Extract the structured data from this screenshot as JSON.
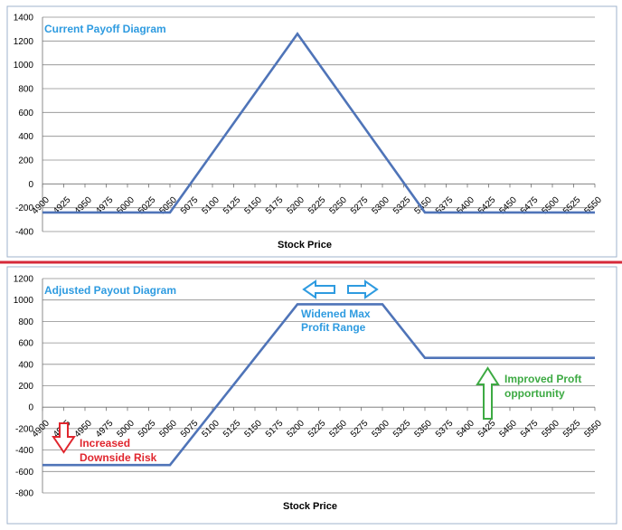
{
  "colors": {
    "line": "#4F74B8",
    "grid": "#8C8C8C",
    "title": "#2E9BE0",
    "divider": "#D62A3A",
    "frame": "#9FB3CC",
    "red_note": "#E0262E",
    "green_note": "#3DAA43",
    "blue_note": "#2E9BE0"
  },
  "chart_data": [
    {
      "type": "line",
      "title": "Current Payoff Diagram",
      "xlabel": "Stock Price",
      "ylabel": "",
      "x_ticks": [
        4900,
        4925,
        4950,
        4975,
        5000,
        5025,
        5050,
        5075,
        5100,
        5125,
        5150,
        5175,
        5200,
        5225,
        5250,
        5275,
        5300,
        5325,
        5350,
        5375,
        5400,
        5425,
        5450,
        5475,
        5500,
        5525,
        5550
      ],
      "y_ticks": [
        -400,
        -200,
        0,
        200,
        400,
        600,
        800,
        1000,
        1200,
        1400
      ],
      "ylim": [
        -400,
        1400
      ],
      "xlim": [
        4900,
        5550
      ],
      "grid": true,
      "series": [
        {
          "x": [
            4900,
            5050,
            5200,
            5350,
            5550
          ],
          "y": [
            -240,
            -240,
            1260,
            -240,
            -240
          ]
        }
      ],
      "annotations": []
    },
    {
      "type": "line",
      "title": "Adjusted Payout Diagram",
      "xlabel": "Stock Price",
      "ylabel": "",
      "x_ticks": [
        4900,
        4925,
        4950,
        4975,
        5000,
        5025,
        5050,
        5075,
        5100,
        5125,
        5150,
        5175,
        5200,
        5225,
        5250,
        5275,
        5300,
        5325,
        5350,
        5375,
        5400,
        5425,
        5450,
        5475,
        5500,
        5525,
        5550
      ],
      "y_ticks": [
        -800,
        -600,
        -400,
        -200,
        0,
        200,
        400,
        600,
        800,
        1000,
        1200
      ],
      "ylim": [
        -800,
        1200
      ],
      "xlim": [
        4900,
        5550
      ],
      "grid": true,
      "series": [
        {
          "x": [
            4900,
            5050,
            5200,
            5300,
            5350,
            5550
          ],
          "y": [
            -540,
            -540,
            960,
            960,
            460,
            460
          ]
        }
      ],
      "annotations": [
        {
          "name": "widened-max-profit",
          "lines": [
            "Widened Max",
            "Profit Range"
          ],
          "color": "blue_note"
        },
        {
          "name": "increased-downside-risk",
          "lines": [
            "Increased",
            "Downside Risk"
          ],
          "color": "red_note"
        },
        {
          "name": "improved-profit-opportunity",
          "lines": [
            "Improved Proft",
            "opportunity"
          ],
          "color": "green_note"
        }
      ]
    }
  ]
}
